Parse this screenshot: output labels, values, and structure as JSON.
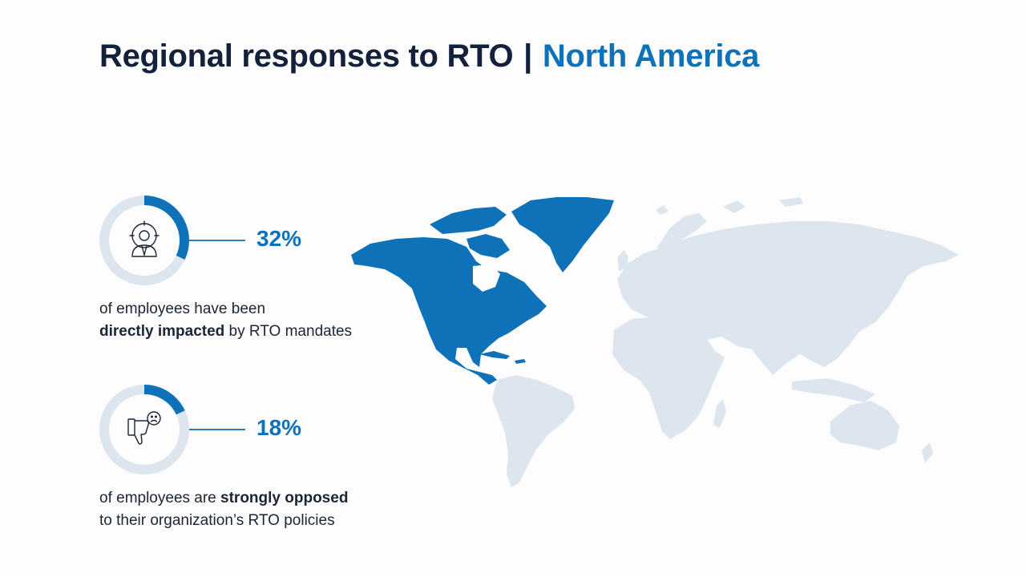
{
  "title": {
    "main": "Regional responses to RTO",
    "separator": "|",
    "region": "North America"
  },
  "stats": [
    {
      "value": "32%",
      "fraction": 0.32,
      "icon": "targeted-person-icon",
      "caption_line1": "of employees have been",
      "caption_bold": "directly impacted",
      "caption_rest": " by RTO mandates"
    },
    {
      "value": "18%",
      "fraction": 0.18,
      "icon": "thumbs-down-sad-icon",
      "caption_pre": "of employees are ",
      "caption_bold": "strongly opposed",
      "caption_line2": "to their organization’s RTO policies"
    }
  ],
  "colors": {
    "accent": "#0f72b8",
    "title": "#14213a",
    "ring_track": "#dde6ee",
    "map_land": "#dde6ee",
    "map_highlight": "#0f72b8"
  }
}
